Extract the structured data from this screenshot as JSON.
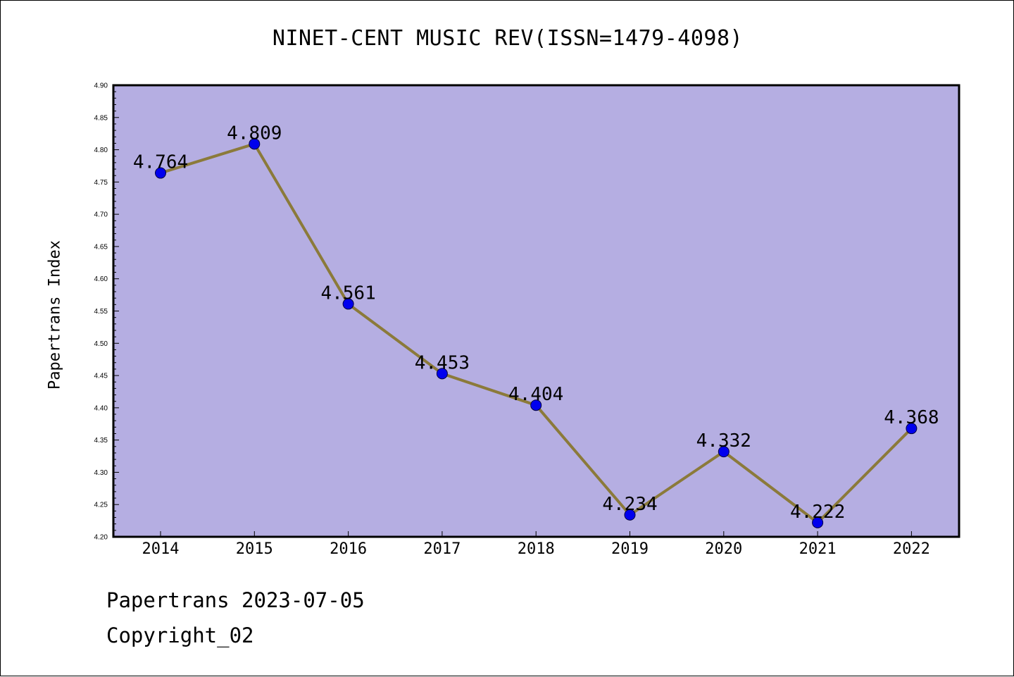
{
  "chart_data": {
    "type": "line",
    "title": "NINET-CENT MUSIC REV(ISSN=1479-4098)",
    "xlabel": "",
    "ylabel": "Papertrans Index",
    "x": [
      "2014",
      "2015",
      "2016",
      "2017",
      "2018",
      "2019",
      "2020",
      "2021",
      "2022"
    ],
    "series": [
      {
        "values": [
          4.764,
          4.809,
          4.561,
          4.453,
          4.404,
          4.234,
          4.332,
          4.222,
          4.368
        ],
        "data_labels": [
          "4.764",
          "4.809",
          "4.561",
          "4.453",
          "4.404",
          "4.234",
          "4.332",
          "4.222",
          "4.368"
        ],
        "line_color": "#8b7a3a",
        "marker_color": "#0000ee"
      }
    ],
    "ylim": [
      4.2,
      4.9
    ],
    "yticks": [
      "4.20",
      "4.25",
      "4.30",
      "4.35",
      "4.40",
      "4.45",
      "4.50",
      "4.55",
      "4.60",
      "4.65",
      "4.70",
      "4.75",
      "4.80",
      "4.85",
      "4.90"
    ],
    "plot_background": "#b5aee2",
    "grid": false,
    "legend": "none"
  },
  "footer": {
    "line1": "Papertrans 2023-07-05",
    "line2": "Copyright_02"
  }
}
